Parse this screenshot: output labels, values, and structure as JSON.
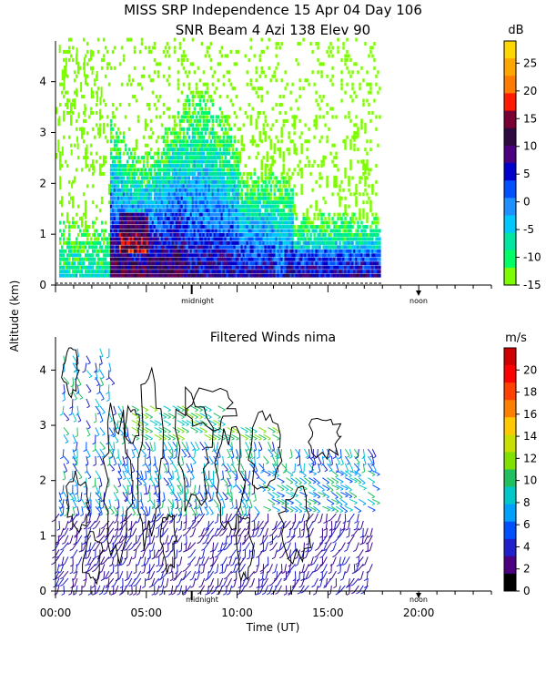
{
  "figure": {
    "title_line1": "MISS SRP Independence  15 Apr 04 Day 106",
    "title_line2": "SNR Beam 4 Azi 138 Elev 90",
    "ylabel": "Altitude (km)",
    "xlabel": "Time (UT)"
  },
  "chart_data": [
    {
      "type": "heatmap",
      "title": "",
      "ylabel": "Altitude (km)",
      "xlim": [
        0,
        24
      ],
      "ylim": [
        0,
        4.8
      ],
      "y_ticks": [
        "0",
        "1",
        "2",
        "3",
        "4"
      ],
      "x_markers": [
        {
          "label": "midnight",
          "hour": 7.5
        },
        {
          "label": "noon",
          "hour": 19.5
        }
      ],
      "colorbar": {
        "unit": "dB",
        "ticks": [
          "25",
          "20",
          "15",
          "10",
          "5",
          "0",
          "-5",
          "-10",
          "-15"
        ],
        "colors": [
          "#FFD700",
          "#FFA500",
          "#FF7A00",
          "#FF1A00",
          "#7A0033",
          "#2D0A3F",
          "#4B0082",
          "#0000CC",
          "#0050FF",
          "#1E90FF",
          "#00C8FF",
          "#00E6A0",
          "#00FF66",
          "#7CFC00"
        ]
      }
    },
    {
      "type": "scatter",
      "title": "Filtered Winds nima",
      "xlabel": "Time (UT)",
      "ylabel": "Altitude (km)",
      "xlim": [
        0,
        24
      ],
      "ylim": [
        0,
        4.6
      ],
      "x_ticks": [
        "00:00",
        "05:00",
        "10:00",
        "15:00",
        "20:00"
      ],
      "y_ticks": [
        "0",
        "1",
        "2",
        "3",
        "4"
      ],
      "x_markers": [
        {
          "label": "midnight",
          "hour": 7.5
        },
        {
          "label": "noon",
          "hour": 19.5
        }
      ],
      "colorbar": {
        "unit": "m/s",
        "ticks": [
          "20",
          "18",
          "16",
          "14",
          "12",
          "10",
          "8",
          "6",
          "4",
          "2",
          "0"
        ],
        "colors": [
          "#000000",
          "#4B0082",
          "#2020CC",
          "#0050FF",
          "#00A0FF",
          "#00C8C8",
          "#20C060",
          "#80E000",
          "#C8E000",
          "#FFC800",
          "#FF8000",
          "#FF4000",
          "#FF0000",
          "#D00000"
        ]
      }
    }
  ]
}
